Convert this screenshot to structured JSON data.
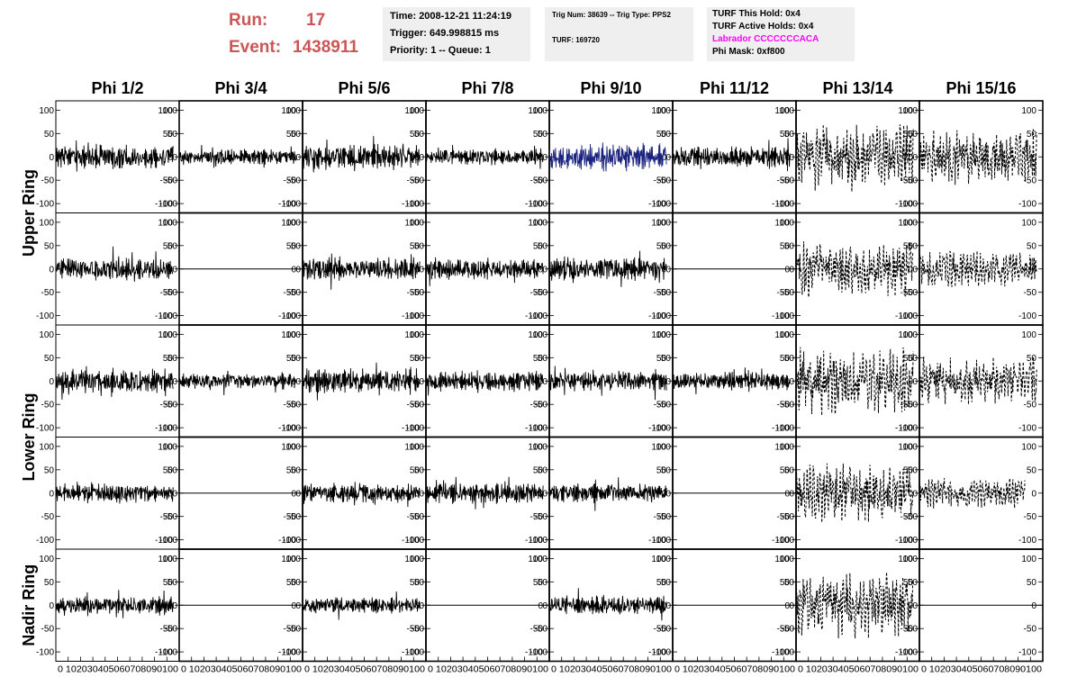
{
  "header": {
    "run_label": "Run:",
    "run_value": "17",
    "event_label": "Event:",
    "event_value": "1438911",
    "label_color": "#cc5555",
    "time_line": "Time: 2008-12-21 11:24:19",
    "trigger_line": "Trigger: 649.998815 ms",
    "priority_line": "Priority: 1 -- Queue: 1",
    "trig_line": "Trig Num: 38639 -- Trig Type: PPS2",
    "turf_line": "TURF: 169720",
    "turf_hold_line": "TURF This Hold: 0x4",
    "turf_active_line": "TURF Active Holds: 0x4",
    "labrador_line": "Labrador CCCCCCCACA",
    "labrador_color": "#ff00ff",
    "phi_mask_line": "Phi Mask: 0xf800"
  },
  "chart_data": {
    "type": "line",
    "columns": [
      "Phi 1/2",
      "Phi 3/4",
      "Phi 5/6",
      "Phi 7/8",
      "Phi 9/10",
      "Phi 11/12",
      "Phi 13/14",
      "Phi 15/16"
    ],
    "rows": [
      {
        "label": "Upper Ring",
        "slot": 0
      },
      {
        "label": "Lower Ring",
        "slot": 2
      },
      {
        "label": "Nadir Ring",
        "slot": 4
      }
    ],
    "xlim": [
      0,
      100
    ],
    "ylim": [
      -120,
      120
    ],
    "x_ticks": [
      0,
      10,
      20,
      30,
      40,
      50,
      60,
      70,
      80,
      90,
      100
    ],
    "y_ticks": [
      100,
      50,
      0,
      -50,
      -100
    ],
    "x_tick_labels": "0 102030405060708090100",
    "trace_length_ns": 95,
    "colors": {
      "normal": "#000000",
      "highlight": "#1a237e"
    },
    "panels": [
      [
        "solid",
        1,
        18,
        1
      ],
      [
        "solid",
        2,
        12,
        1
      ],
      [
        "solid",
        3,
        20,
        1
      ],
      [
        "solid",
        4,
        12,
        1
      ],
      [
        "highlight",
        5,
        20,
        1
      ],
      [
        "solid",
        6,
        16,
        1
      ],
      [
        "dashed",
        7,
        50,
        1
      ],
      [
        "dashed",
        8,
        40,
        1
      ],
      [
        "solid",
        9,
        18,
        1
      ],
      [
        "flat",
        0,
        0,
        1
      ],
      [
        "solid",
        10,
        18,
        1
      ],
      [
        "solid",
        11,
        16,
        1
      ],
      [
        "solid",
        12,
        18,
        1
      ],
      [
        "flat",
        0,
        0,
        1
      ],
      [
        "dashed",
        13,
        42,
        1
      ],
      [
        "dashed",
        14,
        28,
        1
      ],
      [
        "solid",
        15,
        18,
        1
      ],
      [
        "solid",
        16,
        12,
        1
      ],
      [
        "solid",
        17,
        20,
        1
      ],
      [
        "solid",
        18,
        16,
        1
      ],
      [
        "solid",
        19,
        16,
        1
      ],
      [
        "solid",
        20,
        14,
        1
      ],
      [
        "dashed",
        21,
        50,
        1
      ],
      [
        "dashed",
        22,
        36,
        1
      ],
      [
        "solid",
        23,
        14,
        1
      ],
      [
        "flat",
        0,
        0,
        1
      ],
      [
        "solid",
        24,
        14,
        1
      ],
      [
        "solid",
        25,
        16,
        1
      ],
      [
        "solid",
        26,
        14,
        1
      ],
      [
        "flat",
        0,
        0,
        1
      ],
      [
        "dashed",
        27,
        45,
        1
      ],
      [
        "dashed",
        28,
        22,
        0.9
      ],
      [
        "solid",
        29,
        14,
        1
      ],
      [
        "flat",
        0,
        0,
        1
      ],
      [
        "solid",
        30,
        12,
        1
      ],
      [
        "flat",
        0,
        0,
        1
      ],
      [
        "solid",
        31,
        14,
        1
      ],
      [
        "flat",
        0,
        0,
        1
      ],
      [
        "dashed",
        32,
        48,
        1
      ],
      [
        "flat",
        0,
        0,
        1
      ]
    ]
  }
}
